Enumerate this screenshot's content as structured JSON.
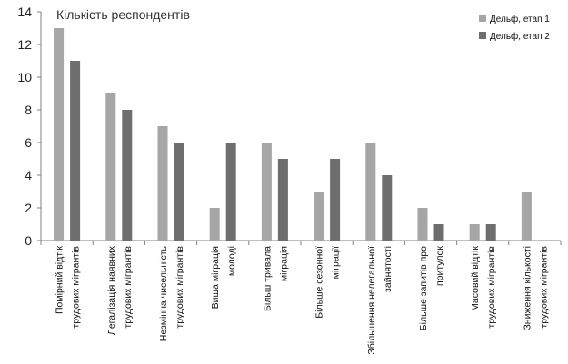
{
  "chart_data": {
    "type": "bar",
    "title": "Кількість респондентів",
    "xlabel": "",
    "ylabel": "",
    "ylim": [
      0,
      14
    ],
    "yticks": [
      0,
      2,
      4,
      6,
      8,
      10,
      12,
      14
    ],
    "grid": false,
    "legend_position": "top-right",
    "categories": [
      [
        "Помірний відтік",
        "трудових мігрантів"
      ],
      [
        "Легалізація наявних",
        "трудових мігрантів"
      ],
      [
        "Незмінна чисельність",
        "трудових мігрантів"
      ],
      [
        "Вища міграція",
        "молоді"
      ],
      [
        "Більш тривала",
        "міграція"
      ],
      [
        "Більше сезонної",
        "міграції"
      ],
      [
        "Збільшення нелегальної",
        "зайнятості"
      ],
      [
        "Більше запитів про",
        "притулок"
      ],
      [
        "Масовий відтік",
        "трудових мігрантів"
      ],
      [
        "Зниження кількості",
        "трудових мігрантів"
      ]
    ],
    "series": [
      {
        "name": "Дельф, етап 1",
        "color": "#a6a6a6",
        "values": [
          13,
          9,
          7,
          2,
          6,
          3,
          6,
          2,
          1,
          3
        ]
      },
      {
        "name": "Дельф, етап 2",
        "color": "#6e6e6e",
        "values": [
          11,
          8,
          6,
          6,
          5,
          5,
          4,
          1,
          1,
          0
        ]
      }
    ]
  }
}
